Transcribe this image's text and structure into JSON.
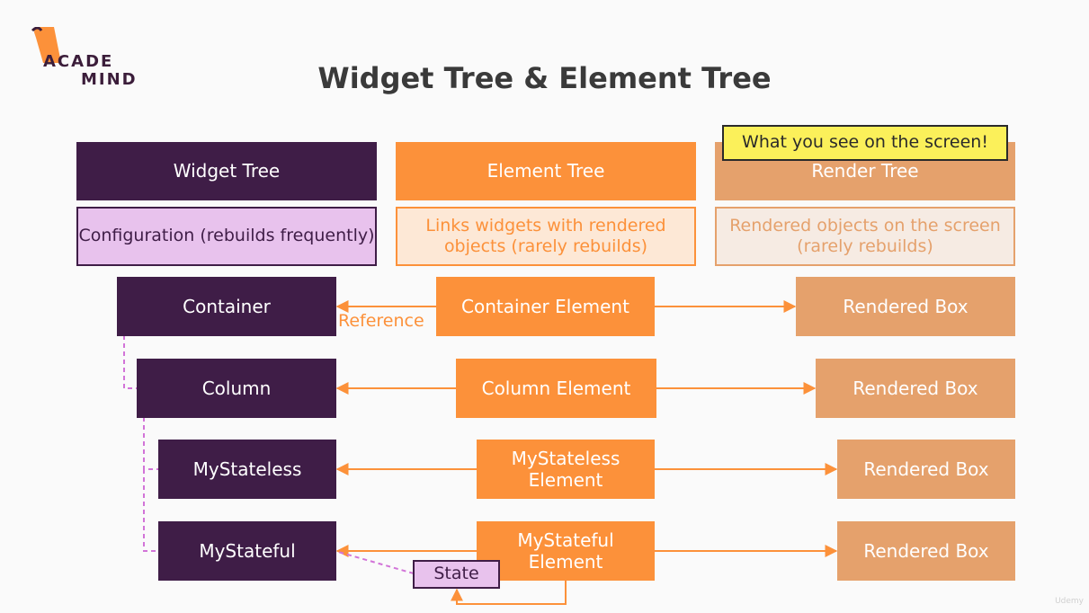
{
  "logo": {
    "line1": "ACADE",
    "line2": "MIND"
  },
  "title": "Widget Tree & Element Tree",
  "callout": "What you see on the screen!",
  "columns": {
    "widget": {
      "header": "Widget Tree",
      "description": "Configuration (rebuilds frequently)"
    },
    "element": {
      "header": "Element Tree",
      "description": "Links widgets with rendered objects (rarely rebuilds)"
    },
    "render": {
      "header": "Render Tree",
      "description": "Rendered objects on the screen (rarely rebuilds)"
    }
  },
  "rows": [
    {
      "widget": "Container",
      "element": "Container Element",
      "render": "Rendered Box"
    },
    {
      "widget": "Column",
      "element": "Column Element",
      "render": "Rendered Box"
    },
    {
      "widget": "MyStateless",
      "element": "MyStateless Element",
      "render": "Rendered Box"
    },
    {
      "widget": "MyStateful",
      "element": "MyStateful Element",
      "render": "Rendered Box"
    }
  ],
  "reference_label": "Reference",
  "state_label": "State",
  "watermark": "Udemy",
  "colors": {
    "widget": "#3f1d47",
    "element": "#fc913a",
    "render": "#e5a16c",
    "callout": "#fbf05a"
  }
}
